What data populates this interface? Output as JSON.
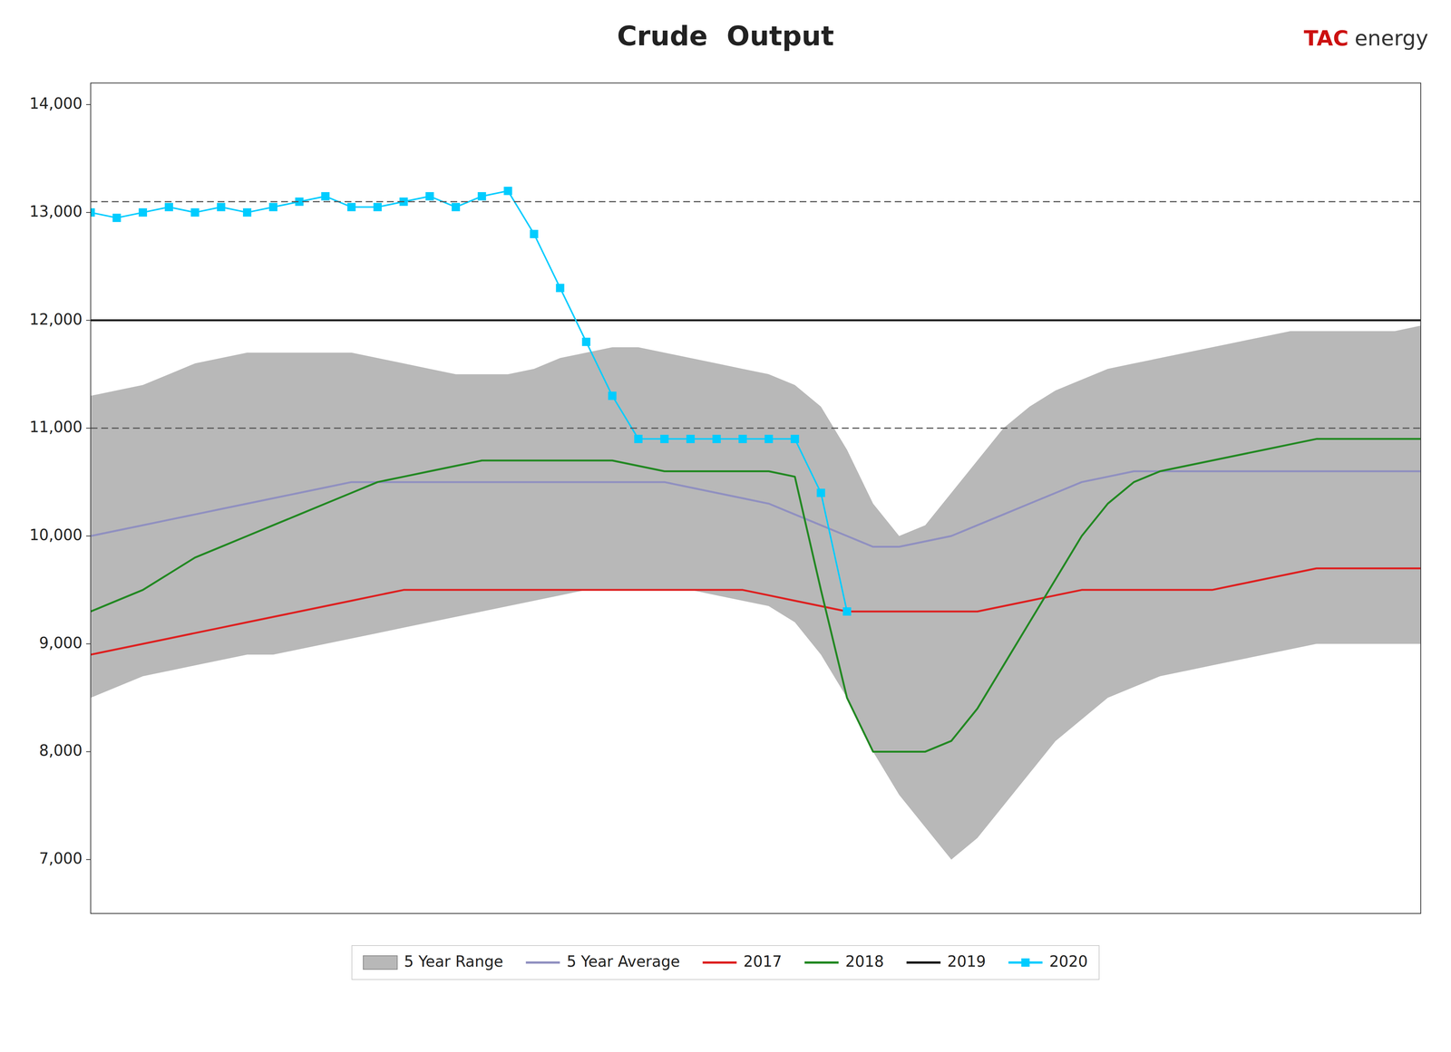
{
  "chart_data": {
    "type": "line",
    "title": "Crude  Output",
    "annotations": [
      {
        "text": "TAC",
        "color": "#cc1111"
      },
      {
        "text": "energy",
        "color": "#333333"
      }
    ],
    "x": [
      1,
      2,
      3,
      4,
      5,
      6,
      7,
      8,
      9,
      10,
      11,
      12,
      13,
      14,
      15,
      16,
      17,
      18,
      19,
      20,
      21,
      22,
      23,
      24,
      25,
      26,
      27,
      28,
      29,
      30,
      31,
      32,
      33,
      34,
      35,
      36,
      37,
      38,
      39,
      40,
      41,
      42,
      43,
      44,
      45,
      46,
      47,
      48,
      49,
      50,
      51,
      52
    ],
    "series": [
      {
        "name": "5 Year Range",
        "type": "area",
        "color": "#b8b8b8",
        "low": [
          8.5,
          8.6,
          8.7,
          8.75,
          8.8,
          8.85,
          8.9,
          8.9,
          8.95,
          9.0,
          9.05,
          9.1,
          9.15,
          9.2,
          9.25,
          9.3,
          9.35,
          9.4,
          9.45,
          9.5,
          9.5,
          9.5,
          9.5,
          9.5,
          9.45,
          9.4,
          9.35,
          9.2,
          8.9,
          8.5,
          8.0,
          7.6,
          7.3,
          7.0,
          7.2,
          7.5,
          7.8,
          8.1,
          8.3,
          8.5,
          8.6,
          8.7,
          8.75,
          8.8,
          8.85,
          8.9,
          8.95,
          9.0,
          9.0,
          9.0,
          9.0,
          9.0
        ],
        "high": [
          11.3,
          11.35,
          11.4,
          11.5,
          11.6,
          11.65,
          11.7,
          11.7,
          11.7,
          11.7,
          11.7,
          11.65,
          11.6,
          11.55,
          11.5,
          11.5,
          11.5,
          11.55,
          11.65,
          11.7,
          11.75,
          11.75,
          11.7,
          11.65,
          11.6,
          11.55,
          11.5,
          11.4,
          11.2,
          10.8,
          10.3,
          10.0,
          10.1,
          10.4,
          10.7,
          11.0,
          11.2,
          11.35,
          11.45,
          11.55,
          11.6,
          11.65,
          11.7,
          11.75,
          11.8,
          11.85,
          11.9,
          11.9,
          11.9,
          11.9,
          11.9,
          11.95
        ]
      },
      {
        "name": "5 Year Average",
        "color": "#9090c0",
        "values": [
          10.0,
          10.05,
          10.1,
          10.15,
          10.2,
          10.25,
          10.3,
          10.35,
          10.4,
          10.45,
          10.5,
          10.5,
          10.5,
          10.5,
          10.5,
          10.5,
          10.5,
          10.5,
          10.5,
          10.5,
          10.5,
          10.5,
          10.5,
          10.45,
          10.4,
          10.35,
          10.3,
          10.2,
          10.1,
          10.0,
          9.9,
          9.9,
          9.95,
          10.0,
          10.1,
          10.2,
          10.3,
          10.4,
          10.5,
          10.55,
          10.6,
          10.6,
          10.6,
          10.6,
          10.6,
          10.6,
          10.6,
          10.6,
          10.6,
          10.6,
          10.6,
          10.6
        ]
      },
      {
        "name": "2017",
        "color": "#dd2020",
        "values": [
          8.9,
          8.95,
          9.0,
          9.05,
          9.1,
          9.15,
          9.2,
          9.25,
          9.3,
          9.35,
          9.4,
          9.45,
          9.5,
          9.5,
          9.5,
          9.5,
          9.5,
          9.5,
          9.5,
          9.5,
          9.5,
          9.5,
          9.5,
          9.5,
          9.5,
          9.5,
          9.45,
          9.4,
          9.35,
          9.3,
          9.3,
          9.3,
          9.3,
          9.3,
          9.3,
          9.35,
          9.4,
          9.45,
          9.5,
          9.5,
          9.5,
          9.5,
          9.5,
          9.5,
          9.55,
          9.6,
          9.65,
          9.7,
          9.7,
          9.7,
          9.7,
          9.7
        ]
      },
      {
        "name": "2018",
        "color": "#228822",
        "values": [
          9.3,
          9.4,
          9.5,
          9.65,
          9.8,
          9.9,
          10.0,
          10.1,
          10.2,
          10.3,
          10.4,
          10.5,
          10.55,
          10.6,
          10.65,
          10.7,
          10.7,
          10.7,
          10.7,
          10.7,
          10.7,
          10.65,
          10.6,
          10.6,
          10.6,
          10.6,
          10.6,
          10.55,
          9.5,
          8.5,
          8.0,
          8.0,
          8.0,
          8.1,
          8.4,
          8.8,
          9.2,
          9.6,
          10.0,
          10.3,
          10.5,
          10.6,
          10.65,
          10.7,
          10.75,
          10.8,
          10.85,
          10.9,
          10.9,
          10.9,
          10.9,
          10.9
        ]
      },
      {
        "name": "2019",
        "color": "#111111",
        "values": [
          12.0,
          12.0,
          12.0,
          12.0,
          12.0,
          12.0,
          12.0,
          12.0,
          12.0,
          12.0,
          12.0,
          12.0,
          12.0,
          12.0,
          12.0,
          12.0,
          12.0,
          12.0,
          12.0,
          12.0,
          12.0,
          12.0,
          12.0,
          12.0,
          12.0,
          12.0,
          12.0,
          12.0,
          12.0,
          12.0,
          12.0,
          12.0,
          12.0,
          12.0,
          12.0,
          12.0,
          12.0,
          12.0,
          12.0,
          12.0,
          12.0,
          12.0,
          12.0,
          12.0,
          12.0,
          12.0,
          12.0,
          12.0,
          12.0,
          12.0,
          12.0,
          12.0
        ]
      },
      {
        "name": "2020",
        "color": "#00ccff",
        "marker": "square",
        "x": [
          1,
          2,
          3,
          4,
          5,
          6,
          7,
          8,
          9,
          10,
          11,
          12,
          13,
          14,
          15,
          16,
          17,
          18,
          19,
          20,
          21,
          22,
          23,
          24,
          25,
          26,
          27,
          28,
          29,
          30
        ],
        "values": [
          13.0,
          12.95,
          13.0,
          13.05,
          13.0,
          13.05,
          13.0,
          13.05,
          13.1,
          13.15,
          13.05,
          13.05,
          13.1,
          13.15,
          13.05,
          13.15,
          13.2,
          12.8,
          12.3,
          11.8,
          11.3,
          10.9,
          10.9,
          10.9,
          10.9,
          10.9,
          10.9,
          10.9,
          10.4,
          9.3
        ]
      }
    ],
    "hlines": [
      13.1,
      11.0
    ],
    "xlim": [
      1,
      52
    ],
    "ylim": [
      6.5,
      14.2
    ],
    "yticks": [
      {
        "value": 7,
        "label": "7,000"
      },
      {
        "value": 8,
        "label": "8,000"
      },
      {
        "value": 9,
        "label": "9,000"
      },
      {
        "value": 10,
        "label": "10,000"
      },
      {
        "value": 11,
        "label": "11,000"
      },
      {
        "value": 12,
        "label": "12,000"
      },
      {
        "value": 13,
        "label": "13,000"
      },
      {
        "value": 14,
        "label": "14,000"
      }
    ],
    "tick_labels": "y",
    "grid": false,
    "legend": "bottom"
  }
}
